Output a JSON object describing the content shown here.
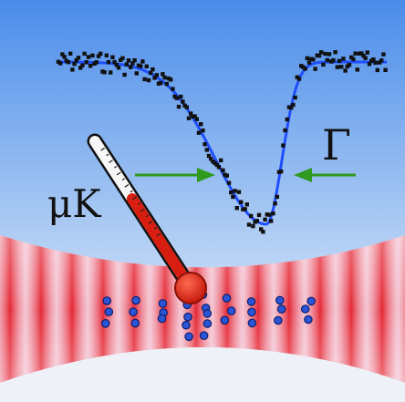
{
  "labels": {
    "temperature_unit": "μK",
    "linewidth_symbol": "Γ"
  },
  "colors": {
    "background_top": "#4d8fea",
    "background_bottom": "#eef3fb",
    "fit_line": "#1f4fff",
    "data_points": "#111111",
    "arrows": "#2f9a1e",
    "thermometer_red": "#d81e10",
    "lattice_red": "#e52630",
    "atoms": "#1e48c8"
  },
  "icons": {
    "thermometer": "thermometer-icon",
    "arrow_right": "arrow-right-icon",
    "arrow_left": "arrow-left-icon"
  }
}
